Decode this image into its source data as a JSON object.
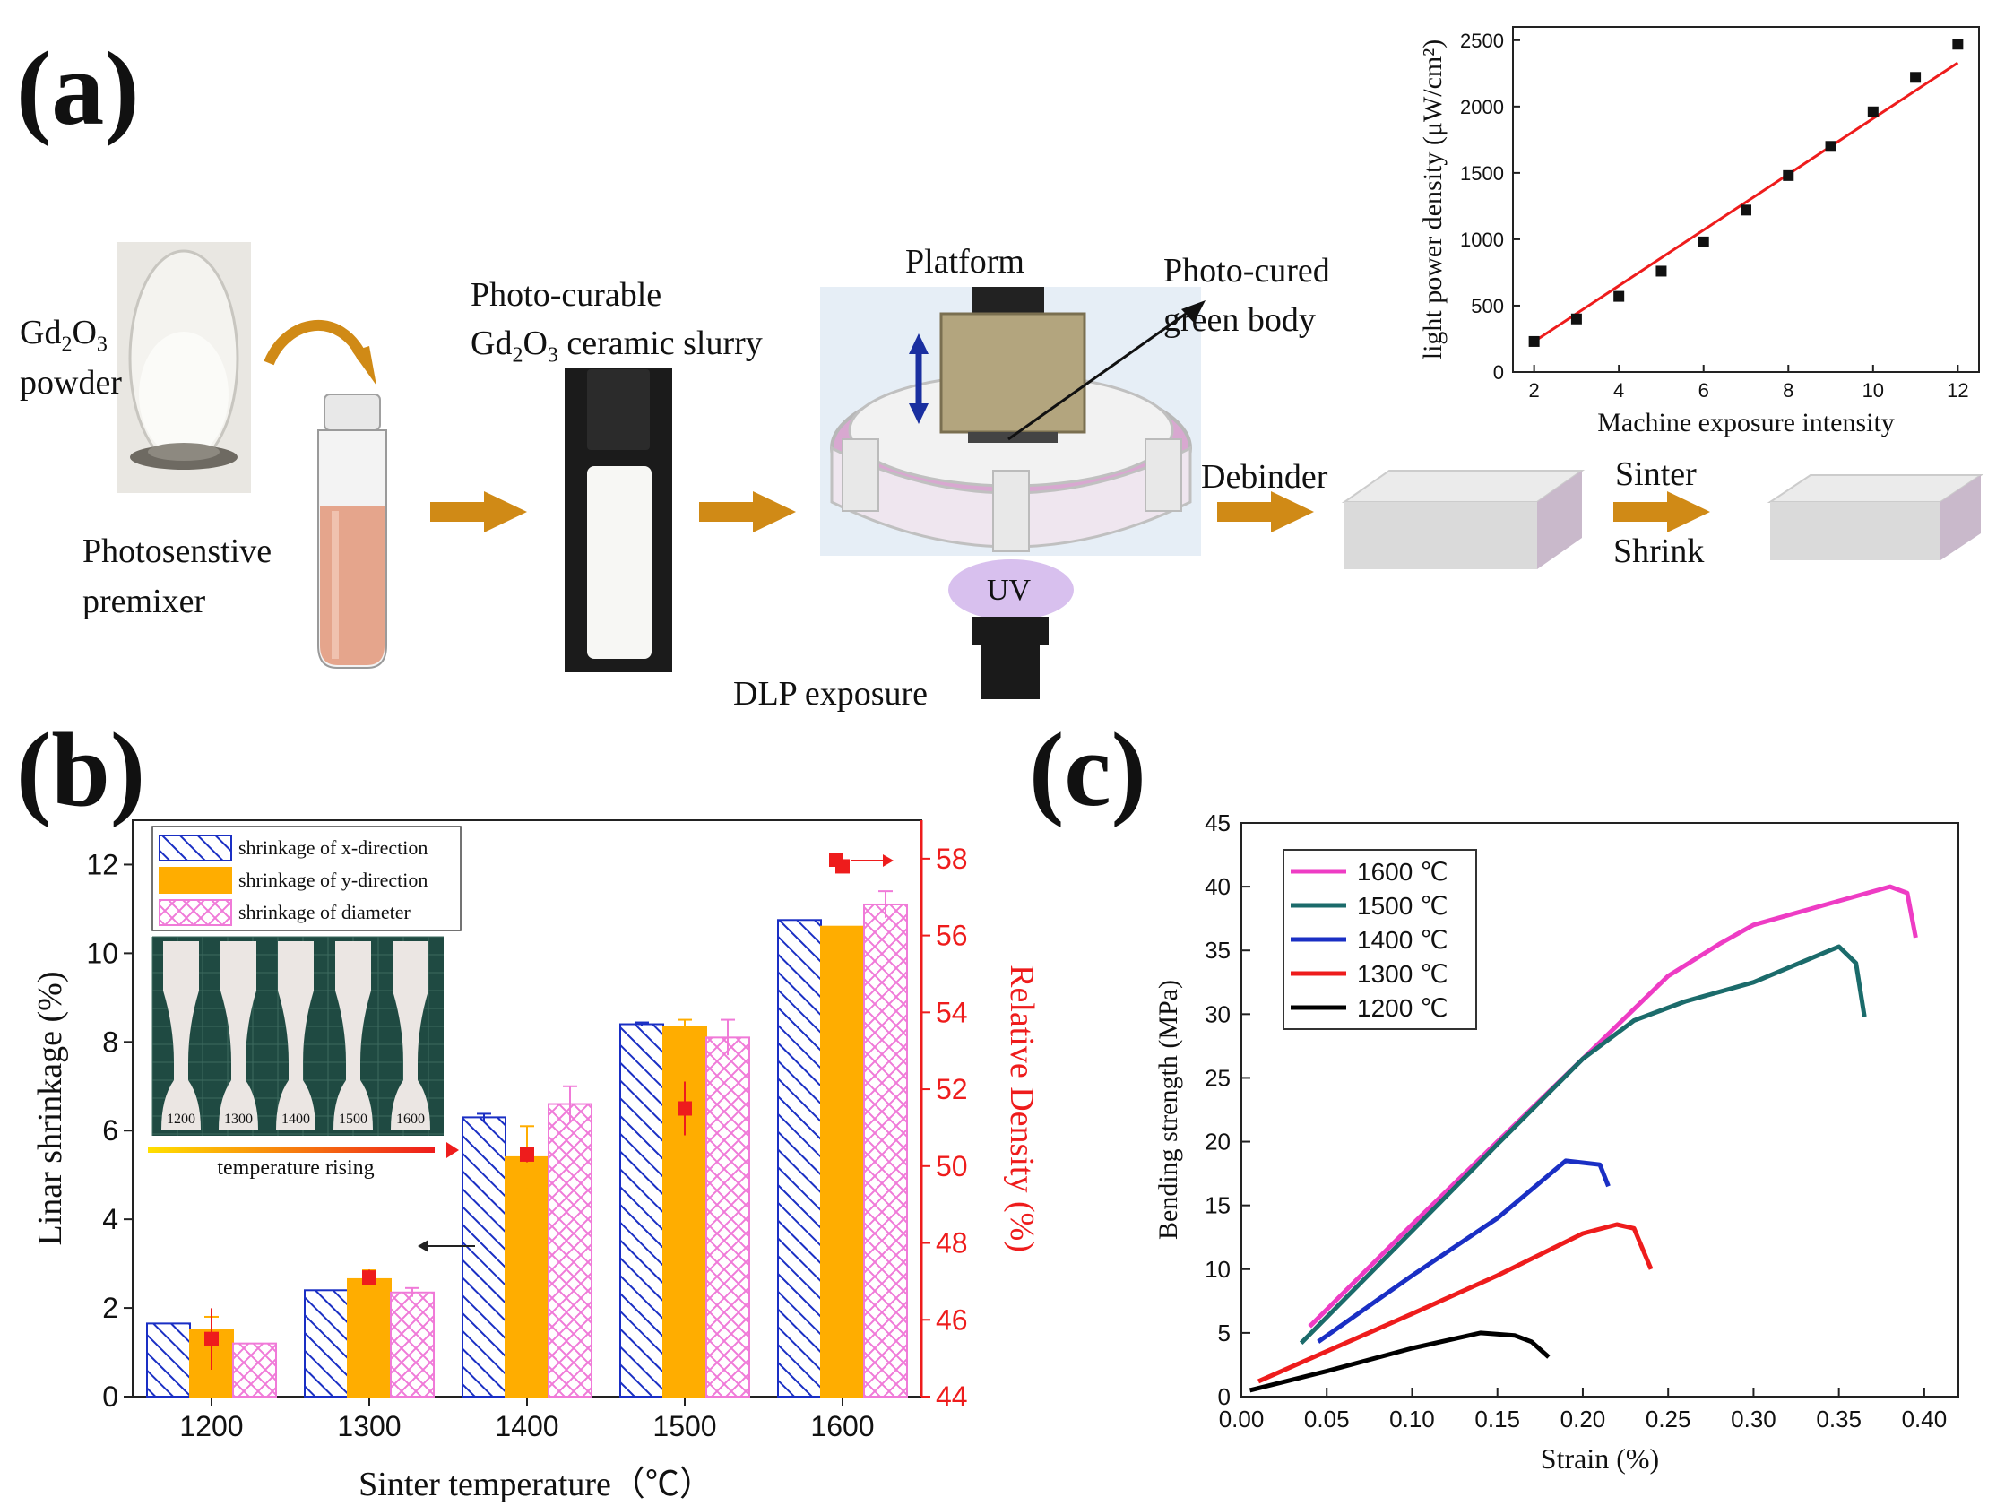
{
  "panels": {
    "a": "(a)",
    "b": "(b)",
    "c": "(c)"
  },
  "schematic": {
    "gd2o3_powder": [
      "Gd2O3",
      "powder"
    ],
    "premixer": [
      "Photosenstive",
      "premixer"
    ],
    "slurry": [
      "Photo-curable",
      "Gd2O3 ceramic slurry"
    ],
    "platform": "Platform",
    "green_body": [
      "Photo-cured",
      "green body"
    ],
    "uv": "UV",
    "dlp": "DLP exposure",
    "debinder": "Debinder",
    "sinter": "Sinter",
    "shrink": "Shrink"
  },
  "photo_inset": {
    "samples": [
      "1200",
      "1300",
      "1400",
      "1500",
      "1600"
    ],
    "caption": "temperature rising"
  },
  "colors": {
    "arrow": "#d08a16",
    "blue": "#1a2fc4",
    "orange": "#ffad00",
    "pink": "#f07ad8",
    "red": "#ee1c1c",
    "magenta": "#ee3cc4",
    "teal": "#1b6b6b",
    "black": "#000000"
  },
  "chart_data": [
    {
      "id": "a-inset",
      "type": "scatter",
      "xlabel": "Machine exposure intensity",
      "ylabel": "light power density (μW/cm²)",
      "xlim": [
        1.5,
        12.5
      ],
      "ylim": [
        0,
        2600
      ],
      "xticks": [
        2,
        4,
        6,
        8,
        10,
        12
      ],
      "yticks": [
        0,
        500,
        1000,
        1500,
        2000,
        2500
      ],
      "x": [
        2,
        3,
        4,
        5,
        6,
        7,
        8,
        9,
        10,
        11,
        12
      ],
      "y": [
        230,
        400,
        570,
        760,
        980,
        1220,
        1480,
        1700,
        1960,
        2220,
        2470
      ],
      "fit_line": {
        "x": [
          2,
          12
        ],
        "y": [
          230,
          2330
        ]
      }
    },
    {
      "id": "b",
      "type": "bar",
      "categories": [
        "1200",
        "1300",
        "1400",
        "1500",
        "1600"
      ],
      "xlabel": "Sinter temperature（℃）",
      "ylabel": "Linar shrinkage (%)",
      "ylabel_right": "Relative Density (%)",
      "ylim": [
        0,
        13
      ],
      "yticks": [
        0,
        2,
        4,
        6,
        8,
        10,
        12
      ],
      "ylim_right": [
        44,
        59
      ],
      "yticks_right": [
        44,
        46,
        48,
        50,
        52,
        54,
        56,
        58
      ],
      "series": [
        {
          "name": "shrinkage of x-direction",
          "values": [
            1.65,
            2.4,
            6.3,
            8.4,
            10.75
          ],
          "errors": [
            0,
            0,
            0.08,
            0.04,
            0
          ]
        },
        {
          "name": "shrinkage of y-direction",
          "values": [
            1.5,
            2.65,
            5.4,
            8.35,
            10.6
          ],
          "errors": [
            0.3,
            0.2,
            0.7,
            0.15,
            0
          ]
        },
        {
          "name": "shrinkage of diameter",
          "values": [
            1.2,
            2.35,
            6.6,
            8.1,
            11.1
          ],
          "errors": [
            0,
            0.1,
            0.4,
            0.4,
            0.3
          ]
        }
      ],
      "density": {
        "values": [
          45.5,
          47.1,
          50.3,
          51.5,
          57.8
        ],
        "errors": [
          0.8,
          0.2,
          0.2,
          0.7,
          0
        ]
      }
    },
    {
      "id": "c",
      "type": "line",
      "xlabel": "Strain (%)",
      "ylabel": "Bending strength (MPa)",
      "xlim": [
        0,
        0.42
      ],
      "ylim": [
        0,
        45
      ],
      "xticks": [
        "0.00",
        "0.05",
        "0.10",
        "0.15",
        "0.20",
        "0.25",
        "0.30",
        "0.35",
        "0.40"
      ],
      "yticks": [
        0,
        5,
        10,
        15,
        20,
        25,
        30,
        35,
        40,
        45
      ],
      "legend_position": "top-left",
      "series": [
        {
          "name": "1600 ℃",
          "x": [
            0.04,
            0.1,
            0.15,
            0.2,
            0.25,
            0.28,
            0.3,
            0.34,
            0.38,
            0.39,
            0.395
          ],
          "y": [
            5.5,
            13.5,
            20,
            26.5,
            33,
            35.5,
            37,
            38.5,
            40,
            39.5,
            36
          ]
        },
        {
          "name": "1500 ℃",
          "x": [
            0.035,
            0.1,
            0.15,
            0.2,
            0.23,
            0.26,
            0.3,
            0.35,
            0.36,
            0.365
          ],
          "y": [
            4.2,
            13,
            19.8,
            26.5,
            29.5,
            31,
            32.5,
            35.3,
            34,
            29.8
          ]
        },
        {
          "name": "1400 ℃",
          "x": [
            0.045,
            0.1,
            0.15,
            0.19,
            0.21,
            0.215
          ],
          "y": [
            4.3,
            9.5,
            14,
            18.5,
            18.2,
            16.5
          ]
        },
        {
          "name": "1300 ℃",
          "x": [
            0.01,
            0.1,
            0.15,
            0.2,
            0.22,
            0.23,
            0.24
          ],
          "y": [
            1.2,
            6.5,
            9.5,
            12.8,
            13.5,
            13.2,
            10
          ]
        },
        {
          "name": "1200 ℃",
          "x": [
            0.005,
            0.05,
            0.1,
            0.14,
            0.16,
            0.17,
            0.18
          ],
          "y": [
            0.5,
            2,
            3.8,
            5,
            4.8,
            4.3,
            3.1
          ]
        }
      ]
    }
  ]
}
